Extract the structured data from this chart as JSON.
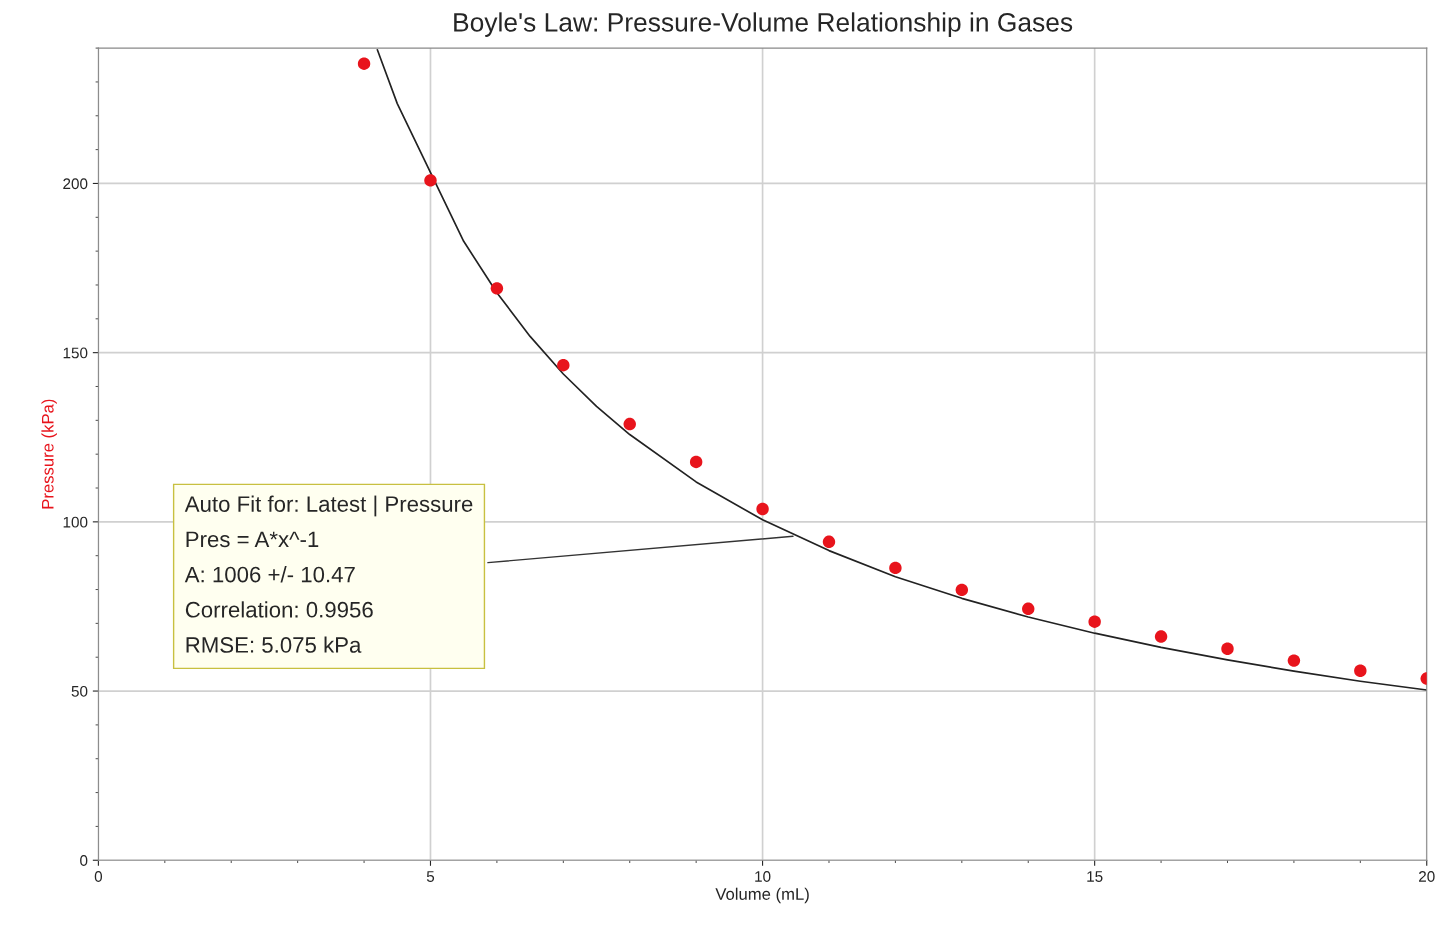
{
  "chart_data": {
    "type": "scatter",
    "title": "Boyle's Law: Pressure-Volume Relationship in Gases",
    "xlabel": "Volume (mL)",
    "ylabel": "Pressure (kPa)",
    "x": [
      4,
      5,
      6,
      7,
      8,
      9,
      10,
      11,
      12,
      13,
      14,
      15,
      16,
      17,
      18,
      19,
      20
    ],
    "series": [
      {
        "color": "#e8141c",
        "marker": "circle",
        "values": [
          235.4,
          200.9,
          169.0,
          146.3,
          128.9,
          117.7,
          103.8,
          94.1,
          86.4,
          79.9,
          74.3,
          70.5,
          66.1,
          62.5,
          59.0,
          56.0,
          53.7
        ]
      },
      {
        "type": "line",
        "color": "#222222",
        "marker": "none",
        "line_style": "solid",
        "x": [
          4.2,
          4.5,
          5.5,
          6,
          6.5,
          7,
          7.5,
          8,
          9,
          10,
          11,
          12,
          13,
          14,
          15,
          16,
          17,
          18,
          19,
          20
        ],
        "values": [
          239.5,
          223.6,
          182.9,
          167.7,
          154.8,
          143.7,
          134.1,
          125.8,
          111.8,
          100.6,
          91.5,
          83.8,
          77.4,
          71.9,
          67.1,
          62.9,
          59.2,
          55.9,
          52.9,
          50.3
        ]
      }
    ],
    "xlim": [
      0,
      20
    ],
    "ylim": [
      0,
      240
    ],
    "xticks": [
      0,
      5,
      10,
      15,
      20
    ],
    "yticks": [
      0,
      50,
      100,
      150,
      200
    ],
    "grid": true,
    "annotations": [
      {
        "text": "Auto Fit for: Latest | Pressure\nPres = A*x^-1\nA: 1006 +/- 10.47\nCorrelation: 0.9956\nRMSE: 5.075 kPa",
        "x": 10.5,
        "y": 95.8
      }
    ]
  }
}
